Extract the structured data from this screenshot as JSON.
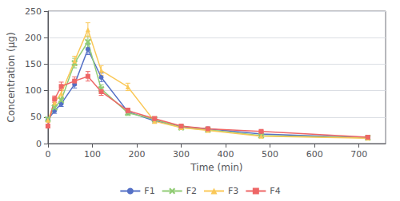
{
  "chart_data": {
    "type": "line",
    "xlabel": "Time (min)",
    "ylabel": "Concentration (μg)",
    "xlim": [
      0,
      760
    ],
    "ylim": [
      0,
      250
    ],
    "xticks": [
      0,
      100,
      200,
      300,
      400,
      500,
      600,
      700
    ],
    "yticks": [
      0,
      50,
      100,
      150,
      200,
      250
    ],
    "x": [
      0,
      15,
      30,
      60,
      90,
      120,
      180,
      240,
      300,
      360,
      480,
      720
    ],
    "series": [
      {
        "name": "F1",
        "marker": "circle",
        "values": [
          45,
          62,
          75,
          112,
          178,
          125,
          60,
          43,
          32,
          28,
          18,
          11
        ],
        "yerr": [
          3,
          5,
          5,
          7,
          10,
          8,
          5,
          4,
          3,
          3,
          2,
          1
        ]
      },
      {
        "name": "F2",
        "marker": "x",
        "values": [
          46,
          68,
          82,
          152,
          192,
          103,
          58,
          46,
          30,
          26,
          15,
          11
        ],
        "yerr": [
          3,
          5,
          6,
          9,
          11,
          8,
          5,
          4,
          3,
          3,
          2,
          1
        ]
      },
      {
        "name": "F3",
        "marker": "triangle",
        "values": [
          44,
          78,
          95,
          156,
          215,
          138,
          107,
          42,
          30,
          25,
          14,
          10
        ],
        "yerr": [
          4,
          6,
          7,
          9,
          13,
          9,
          7,
          4,
          3,
          3,
          2,
          1
        ]
      },
      {
        "name": "F4",
        "marker": "square",
        "values": [
          33,
          84,
          108,
          118,
          127,
          98,
          62,
          47,
          33,
          28,
          23,
          12
        ],
        "yerr": [
          3,
          6,
          8,
          8,
          9,
          7,
          5,
          4,
          3,
          3,
          2,
          1
        ]
      }
    ],
    "grid": true,
    "legend": "bottom"
  }
}
